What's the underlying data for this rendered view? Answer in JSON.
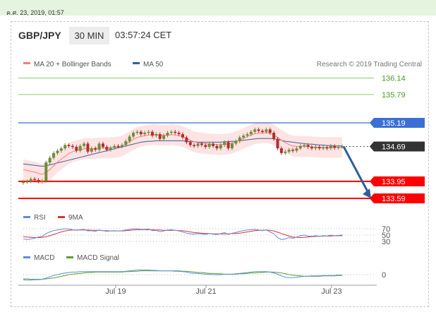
{
  "date_bar": {
    "text": "ค.ศ. 23, 2019, 01:57"
  },
  "header": {
    "pair": "GBP/JPY",
    "timeframe": "30 MIN",
    "time": "03:57:24 CET"
  },
  "colors": {
    "ma20": "#f08080",
    "ma50": "#3a5f9a",
    "bollinger_fill": "#fde0e0",
    "resistance_green": "#8ccc6a",
    "blue_level": "#3b6fd6",
    "red_level": "#ff0000",
    "current_price_bg": "#333333",
    "arrow": "#2e5f99",
    "up_candle": "#6f8c3a",
    "down_candle": "#b12e2e",
    "rsi": "#5b8fd8",
    "rsi_9ma": "#e03030",
    "macd": "#5b8fd8",
    "macd_signal": "#5aa02c"
  },
  "chart_data": [
    {
      "type": "line",
      "title": "GBP/JPY 30 MIN",
      "legend": [
        {
          "name": "MA 20 + Bollinger Bands",
          "color": "#f08080"
        },
        {
          "name": "MA 50",
          "color": "#3a5f9a"
        }
      ],
      "credit": "Research © 2019 Trading Central",
      "x_tick_labels": [
        "Jul 19",
        "Jul 21",
        "Jul 23"
      ],
      "levels": [
        {
          "label": "136.14",
          "value": 136.14,
          "style": "resistance"
        },
        {
          "label": "135.79",
          "value": 135.79,
          "style": "resistance"
        },
        {
          "label": "135.19",
          "value": 135.19,
          "style": "blue"
        },
        {
          "label": "134.69",
          "value": 134.69,
          "style": "current"
        },
        {
          "label": "133.95",
          "value": 133.95,
          "style": "support"
        },
        {
          "label": "133.59",
          "value": 133.59,
          "style": "support"
        }
      ],
      "close": [
        133.94,
        133.95,
        134.0,
        133.98,
        133.95,
        133.96,
        134.35,
        134.45,
        134.55,
        134.6,
        134.65,
        134.72,
        134.7,
        134.68,
        134.6,
        134.7,
        134.75,
        134.58,
        134.65,
        134.62,
        134.75,
        134.68,
        134.62,
        134.66,
        134.7,
        134.69,
        134.72,
        134.8,
        134.9,
        134.98,
        135.0,
        134.95,
        134.98,
        135.0,
        134.92,
        134.95,
        134.85,
        134.92,
        134.98,
        135.0,
        134.98,
        134.95,
        134.88,
        134.78,
        134.72,
        134.7,
        134.75,
        134.72,
        134.68,
        134.75,
        134.7,
        134.65,
        134.72,
        134.78,
        134.65,
        134.75,
        134.8,
        134.88,
        134.92,
        134.95,
        135.0,
        135.05,
        135.02,
        135.0,
        135.05,
        134.98,
        134.85,
        134.65,
        134.55,
        134.58,
        134.62,
        134.6,
        134.65,
        134.7,
        134.72,
        134.68,
        134.65,
        134.68,
        134.65,
        134.67,
        134.65,
        134.7,
        134.66,
        134.68,
        134.69
      ],
      "ma20": [
        134.2,
        134.18,
        134.16,
        134.15,
        134.12,
        134.1,
        134.14,
        134.2,
        134.28,
        134.36,
        134.42,
        134.48,
        134.54,
        134.58,
        134.6,
        134.62,
        134.64,
        134.65,
        134.64,
        134.65,
        134.66,
        134.66,
        134.66,
        134.66,
        134.67,
        134.68,
        134.7,
        134.74,
        134.79,
        134.84,
        134.88,
        134.9,
        134.92,
        134.93,
        134.94,
        134.94,
        134.93,
        134.93,
        134.93,
        134.94,
        134.93,
        134.92,
        134.9,
        134.86,
        134.82,
        134.79,
        134.77,
        134.76,
        134.75,
        134.74,
        134.74,
        134.73,
        134.73,
        134.74,
        134.74,
        134.76,
        134.79,
        134.82,
        134.86,
        134.9,
        134.93,
        134.96,
        134.97,
        134.98,
        134.98,
        134.97,
        134.93,
        134.88,
        134.82,
        134.77,
        134.73,
        134.7,
        134.69,
        134.69,
        134.69,
        134.69,
        134.68,
        134.68,
        134.67,
        134.67,
        134.67,
        134.67,
        134.67,
        134.67,
        134.67
      ],
      "bollinger_band_width": 0.22,
      "ma50": [
        134.32,
        134.31,
        134.3,
        134.29,
        134.28,
        134.27,
        134.28,
        134.3,
        134.32,
        134.34,
        134.36,
        134.38,
        134.4,
        134.42,
        134.44,
        134.46,
        134.48,
        134.5,
        134.52,
        134.54,
        134.56,
        134.58,
        134.6,
        134.62,
        134.64,
        134.66,
        134.68,
        134.7,
        134.72,
        134.74,
        134.76,
        134.78,
        134.79,
        134.8,
        134.8,
        134.81,
        134.81,
        134.81,
        134.81,
        134.81,
        134.81,
        134.81,
        134.81,
        134.8,
        134.79,
        134.79,
        134.78,
        134.78,
        134.78,
        134.78,
        134.78,
        134.78,
        134.78,
        134.79,
        134.79,
        134.8,
        134.8,
        134.81,
        134.82,
        134.83,
        134.84,
        134.85,
        134.86,
        134.86,
        134.86,
        134.86,
        134.85,
        134.84,
        134.82,
        134.8,
        134.79,
        134.78,
        134.77,
        134.76,
        134.75,
        134.74,
        134.74,
        134.73,
        134.72,
        134.72,
        134.71,
        134.71,
        134.7,
        134.7,
        134.7
      ],
      "forecast": {
        "from": 134.69,
        "to": 133.59
      }
    },
    {
      "type": "line",
      "legend": [
        {
          "name": "RSI",
          "color": "#5b8fd8"
        },
        {
          "name": "9MA",
          "color": "#e03030"
        }
      ],
      "reference_levels": [
        {
          "label": "70",
          "value": 70
        },
        {
          "label": "50",
          "value": 50
        },
        {
          "label": "30",
          "value": 30
        }
      ],
      "rsi": [
        38,
        36,
        38,
        40,
        44,
        46,
        55,
        60,
        64,
        66,
        68,
        70,
        69,
        67,
        65,
        67,
        68,
        63,
        64,
        62,
        66,
        64,
        62,
        63,
        64,
        63,
        64,
        66,
        68,
        70,
        70,
        68,
        68,
        69,
        64,
        65,
        61,
        63,
        66,
        67,
        65,
        63,
        60,
        56,
        54,
        53,
        55,
        54,
        52,
        55,
        53,
        52,
        55,
        58,
        52,
        56,
        58,
        62,
        64,
        66,
        67,
        68,
        66,
        64,
        66,
        60,
        54,
        42,
        36,
        38,
        42,
        40,
        44,
        48,
        50,
        47,
        46,
        48,
        46,
        48,
        47,
        50,
        48,
        49,
        50
      ],
      "ma9": [
        45,
        44,
        43,
        42,
        42,
        43,
        45,
        48,
        52,
        56,
        60,
        63,
        65,
        66,
        66,
        66,
        66,
        66,
        65,
        65,
        65,
        64,
        64,
        63,
        63,
        63,
        63,
        64,
        65,
        66,
        67,
        67,
        67,
        67,
        67,
        66,
        66,
        65,
        65,
        65,
        65,
        64,
        64,
        62,
        60,
        58,
        57,
        56,
        55,
        55,
        54,
        54,
        54,
        54,
        54,
        55,
        55,
        56,
        58,
        60,
        62,
        64,
        65,
        65,
        66,
        65,
        63,
        59,
        55,
        51,
        47,
        44,
        43,
        42,
        43,
        44,
        45,
        46,
        46,
        47,
        47,
        47,
        48,
        48,
        48
      ]
    },
    {
      "type": "line",
      "legend": [
        {
          "name": "MACD",
          "color": "#5b8fd8"
        },
        {
          "name": "MACD Signal",
          "color": "#5aa02c"
        }
      ],
      "reference_levels": [
        {
          "label": "0",
          "value": 0
        }
      ],
      "macd": [
        -0.12,
        -0.13,
        -0.13,
        -0.12,
        -0.12,
        -0.11,
        -0.08,
        -0.05,
        -0.02,
        0.0,
        0.02,
        0.04,
        0.05,
        0.06,
        0.06,
        0.07,
        0.07,
        0.07,
        0.07,
        0.07,
        0.07,
        0.07,
        0.07,
        0.07,
        0.07,
        0.07,
        0.07,
        0.08,
        0.09,
        0.1,
        0.11,
        0.11,
        0.11,
        0.11,
        0.1,
        0.1,
        0.09,
        0.09,
        0.09,
        0.09,
        0.08,
        0.08,
        0.07,
        0.06,
        0.04,
        0.03,
        0.03,
        0.02,
        0.01,
        0.01,
        0.0,
        0.0,
        0.0,
        0.01,
        0.01,
        0.01,
        0.02,
        0.03,
        0.04,
        0.05,
        0.06,
        0.07,
        0.07,
        0.07,
        0.07,
        0.06,
        0.04,
        0.01,
        -0.03,
        -0.06,
        -0.07,
        -0.07,
        -0.06,
        -0.05,
        -0.04,
        -0.04,
        -0.03,
        -0.03,
        -0.03,
        -0.02,
        -0.02,
        -0.02,
        -0.02,
        -0.01,
        -0.01
      ],
      "signal": [
        -0.1,
        -0.1,
        -0.11,
        -0.11,
        -0.11,
        -0.11,
        -0.1,
        -0.09,
        -0.08,
        -0.06,
        -0.04,
        -0.02,
        0.0,
        0.01,
        0.02,
        0.03,
        0.04,
        0.05,
        0.05,
        0.06,
        0.06,
        0.06,
        0.06,
        0.06,
        0.06,
        0.06,
        0.06,
        0.07,
        0.07,
        0.08,
        0.08,
        0.09,
        0.09,
        0.09,
        0.09,
        0.09,
        0.09,
        0.09,
        0.09,
        0.09,
        0.09,
        0.09,
        0.08,
        0.08,
        0.07,
        0.06,
        0.05,
        0.05,
        0.04,
        0.03,
        0.03,
        0.02,
        0.02,
        0.01,
        0.01,
        0.01,
        0.01,
        0.02,
        0.02,
        0.03,
        0.04,
        0.04,
        0.05,
        0.05,
        0.06,
        0.06,
        0.06,
        0.05,
        0.04,
        0.02,
        0.0,
        -0.01,
        -0.02,
        -0.03,
        -0.04,
        -0.04,
        -0.04,
        -0.04,
        -0.04,
        -0.03,
        -0.03,
        -0.03,
        -0.03,
        -0.02,
        -0.02
      ]
    }
  ]
}
